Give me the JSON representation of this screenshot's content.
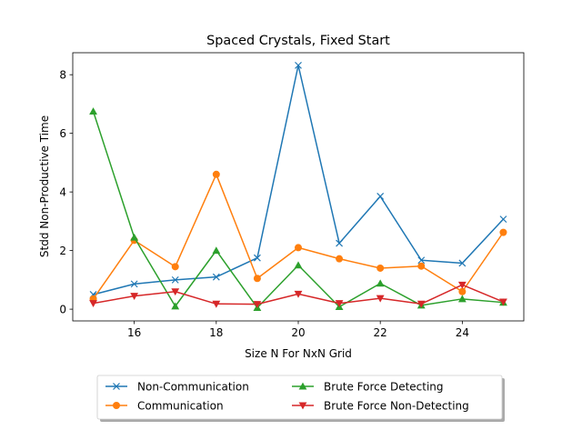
{
  "chart_data": {
    "type": "line",
    "title": "Spaced Crystals, Fixed Start",
    "xlabel": "Size N For NxN Grid",
    "ylabel": "Stdd Non-Productive Time",
    "x": [
      15,
      16,
      17,
      18,
      19,
      20,
      21,
      22,
      23,
      24,
      25
    ],
    "xlim": [
      14.5,
      25.5
    ],
    "ylim": [
      -0.4,
      8.75
    ],
    "xticks": [
      16,
      18,
      20,
      22,
      24
    ],
    "yticks": [
      0,
      2,
      4,
      6,
      8
    ],
    "grid": false,
    "legend_position": "below-center",
    "series": [
      {
        "name": "Non-Communication",
        "color": "#1f77b4",
        "marker": "x",
        "values": [
          0.5,
          0.86,
          1.0,
          1.1,
          1.75,
          8.32,
          2.25,
          3.85,
          1.67,
          1.57,
          3.07
        ]
      },
      {
        "name": "Communication",
        "color": "#ff7f0e",
        "marker": "circle",
        "values": [
          0.35,
          2.35,
          1.45,
          4.6,
          1.05,
          2.1,
          1.72,
          1.4,
          1.47,
          0.6,
          2.62
        ]
      },
      {
        "name": "Brute Force Detecting",
        "color": "#2ca02c",
        "marker": "triangle-up",
        "values": [
          6.75,
          2.45,
          0.1,
          2.0,
          0.05,
          1.5,
          0.08,
          0.88,
          0.13,
          0.35,
          0.23
        ]
      },
      {
        "name": "Brute Force Non-Detecting",
        "color": "#d62728",
        "marker": "triangle-down",
        "values": [
          0.2,
          0.45,
          0.6,
          0.18,
          0.17,
          0.52,
          0.2,
          0.37,
          0.18,
          0.83,
          0.25
        ]
      }
    ]
  }
}
